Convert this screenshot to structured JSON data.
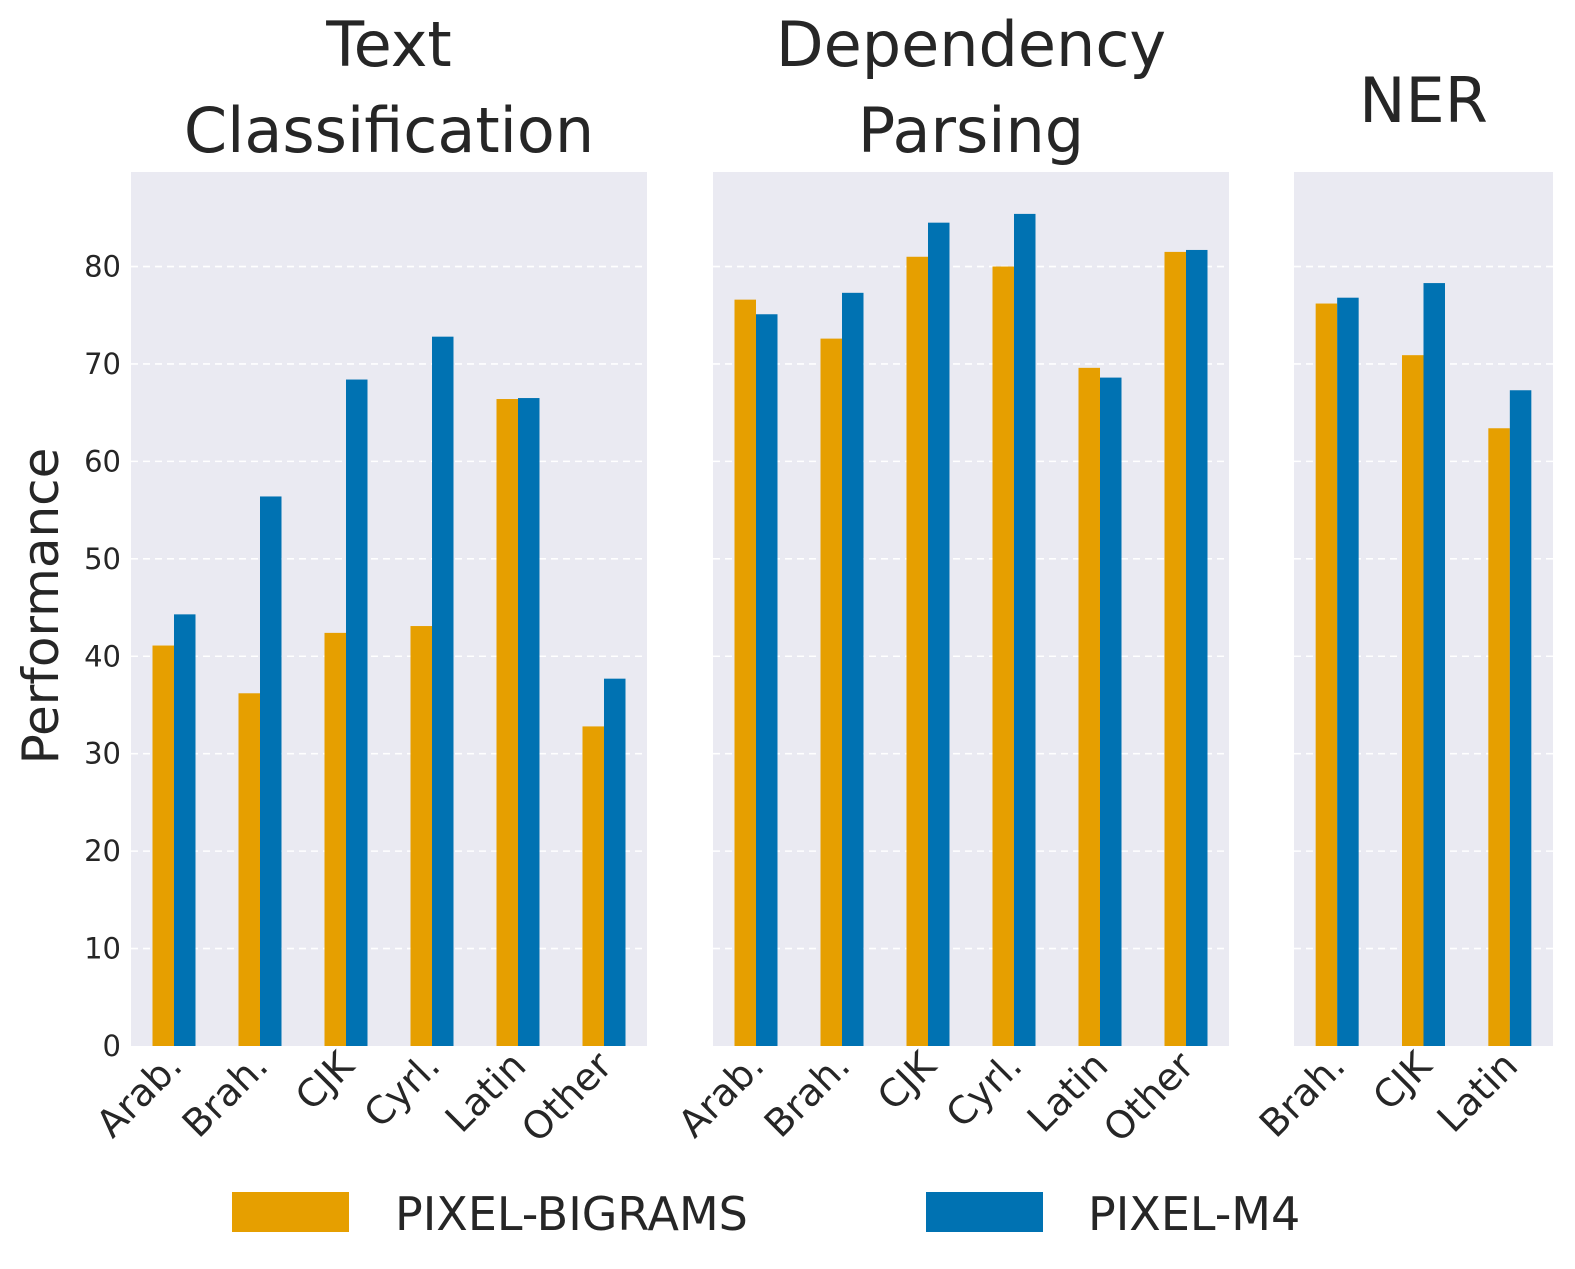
{
  "chart_data": [
    {
      "type": "bar",
      "title": "Text Classification",
      "title_lines": [
        "Text",
        "Classification"
      ],
      "categories": [
        "Arab.",
        "Brah.",
        "CJK",
        "Cyrl.",
        "Latin",
        "Other"
      ],
      "series": [
        {
          "name": "PIXEL-BIGRAMS",
          "values": [
            41.1,
            36.2,
            42.4,
            43.1,
            66.4,
            32.8
          ]
        },
        {
          "name": "PIXEL-M4",
          "values": [
            44.3,
            56.4,
            68.4,
            72.8,
            66.5,
            37.7
          ]
        }
      ],
      "ylabel": "Performance",
      "ylim": [
        0,
        89.7
      ],
      "yticks": [
        0,
        10,
        20,
        30,
        40,
        50,
        60,
        70,
        80
      ],
      "grid": true
    },
    {
      "type": "bar",
      "title": "Dependency Parsing",
      "title_lines": [
        "Dependency",
        "Parsing"
      ],
      "categories": [
        "Arab.",
        "Brah.",
        "CJK",
        "Cyrl.",
        "Latin",
        "Other"
      ],
      "series": [
        {
          "name": "PIXEL-BIGRAMS",
          "values": [
            76.6,
            72.6,
            81.0,
            80.0,
            69.6,
            81.5
          ]
        },
        {
          "name": "PIXEL-M4",
          "values": [
            75.1,
            77.3,
            84.5,
            85.4,
            68.6,
            81.7
          ]
        }
      ],
      "ylim": [
        0,
        89.7
      ],
      "grid": true
    },
    {
      "type": "bar",
      "title": "NER",
      "title_lines": [
        "NER"
      ],
      "categories": [
        "Brah.",
        "CJK",
        "Latin"
      ],
      "series": [
        {
          "name": "PIXEL-BIGRAMS",
          "values": [
            76.2,
            70.9,
            63.4
          ]
        },
        {
          "name": "PIXEL-M4",
          "values": [
            76.8,
            78.3,
            67.3
          ]
        }
      ],
      "ylim": [
        0,
        89.7
      ],
      "grid": true
    }
  ],
  "legend": {
    "placement": "bottom",
    "items": [
      {
        "label": "PIXEL-BIGRAMS",
        "color": "#E69F00"
      },
      {
        "label": "PIXEL-M4",
        "color": "#0072B2"
      }
    ]
  },
  "colors": {
    "panel_bg": "#EAEAF2",
    "grid": "#FFFFFF",
    "series": [
      "#E69F00",
      "#0072B2"
    ]
  }
}
